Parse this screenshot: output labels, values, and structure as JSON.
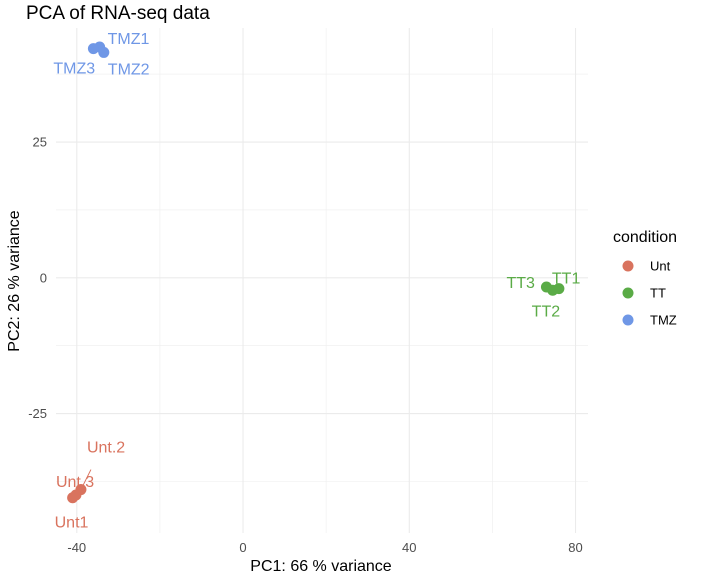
{
  "chart_data": {
    "type": "scatter",
    "title": "PCA of RNA-seq data",
    "xlabel": "PC1:  66 % variance",
    "ylabel": "PC2:  26 % variance",
    "xlim": [
      -45,
      83
    ],
    "ylim": [
      -47,
      46
    ],
    "xticks": [
      -40,
      0,
      40,
      80
    ],
    "yticks": [
      -25,
      0,
      25
    ],
    "grid": true,
    "legend": {
      "title": "condition",
      "placement": "right"
    },
    "series": [
      {
        "name": "Unt",
        "color": "#d9735e",
        "points": [
          {
            "label": "Unt1",
            "x": -41,
            "y": -40.5
          },
          {
            "label": "Unt.2",
            "x": -39,
            "y": -39
          },
          {
            "label": "Unt.3",
            "x": -40.2,
            "y": -40
          }
        ]
      },
      {
        "name": "TT",
        "color": "#5aab46",
        "points": [
          {
            "label": "TT1",
            "x": 76,
            "y": -2
          },
          {
            "label": "TT2",
            "x": 74.5,
            "y": -2.3
          },
          {
            "label": "TT3",
            "x": 73,
            "y": -1.7
          }
        ]
      },
      {
        "name": "TMZ",
        "color": "#6f97e6",
        "points": [
          {
            "label": "TMZ1",
            "x": -34.5,
            "y": 42.5
          },
          {
            "label": "TMZ2",
            "x": -33.5,
            "y": 41.5
          },
          {
            "label": "TMZ3",
            "x": -36,
            "y": 42.2
          }
        ]
      }
    ]
  }
}
